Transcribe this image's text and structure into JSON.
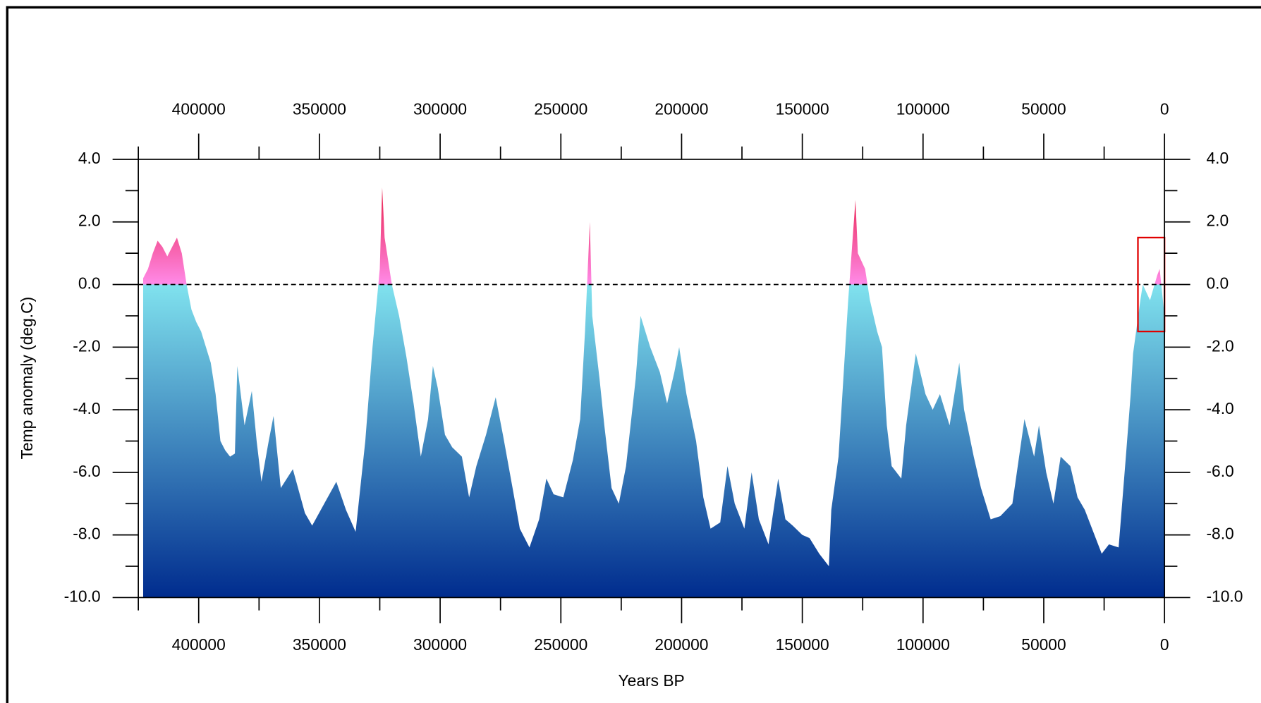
{
  "chart_data": {
    "type": "area",
    "xlabel": "Years BP",
    "ylabel": "Temp anomaly (deg.C)",
    "xlim": [
      425000,
      0
    ],
    "ylim": [
      -10,
      4
    ],
    "xticks": [
      400000,
      350000,
      300000,
      250000,
      200000,
      150000,
      100000,
      50000,
      0
    ],
    "xminor": [
      425000,
      375000,
      325000,
      275000,
      225000,
      175000,
      125000,
      75000,
      25000
    ],
    "yticks": [
      {
        "value": -10,
        "label": "-10.0"
      },
      {
        "value": -8,
        "label": "-8.0"
      },
      {
        "value": -6,
        "label": "-6.0"
      },
      {
        "value": -4,
        "label": "-4.0"
      },
      {
        "value": -2,
        "label": "-2.0"
      },
      {
        "value": 0,
        "label": "0.0"
      },
      {
        "value": 2,
        "label": "2.0"
      },
      {
        "value": 4,
        "label": "4.0"
      }
    ],
    "yminor": [
      -9,
      -7,
      -5,
      -3,
      -1,
      1,
      3
    ],
    "reference_line": 0,
    "colors": [
      "#e3001b",
      "#ff8ae8",
      "#80e2ee",
      "#002c8e"
    ],
    "highlight": {
      "xlim": [
        11000,
        0
      ],
      "ylim": [
        1.5,
        -1.5
      ],
      "color": "#e00000"
    },
    "x": [
      423000,
      421000,
      419000,
      417000,
      415000,
      413000,
      411000,
      409000,
      407000,
      405000,
      403000,
      401000,
      399000,
      397000,
      395000,
      393000,
      391000,
      389000,
      387000,
      385000,
      384000,
      381000,
      378000,
      376000,
      374000,
      371000,
      369000,
      366000,
      361000,
      356000,
      353000,
      348000,
      343000,
      339000,
      335000,
      331000,
      328000,
      325000,
      324000,
      323000,
      320000,
      317000,
      314000,
      311000,
      308000,
      305000,
      303000,
      301000,
      298000,
      295000,
      291000,
      288000,
      285000,
      281000,
      277000,
      274000,
      270000,
      267000,
      263000,
      259000,
      256000,
      253000,
      249000,
      245000,
      242000,
      240000,
      238000,
      237000,
      234000,
      232000,
      229000,
      226000,
      223000,
      219000,
      217000,
      215000,
      213000,
      209000,
      206000,
      203000,
      201000,
      198000,
      194000,
      191000,
      188000,
      184000,
      181000,
      178000,
      174000,
      171000,
      168000,
      164000,
      160000,
      157000,
      154000,
      150000,
      147000,
      143000,
      139000,
      138000,
      135000,
      133000,
      131000,
      128000,
      127000,
      124000,
      122000,
      119000,
      117000,
      115000,
      113000,
      109000,
      107000,
      103000,
      99000,
      96000,
      93000,
      89000,
      85000,
      83000,
      79000,
      76000,
      72000,
      68000,
      63000,
      58000,
      54000,
      52000,
      49000,
      46000,
      43000,
      39000,
      36000,
      33000,
      29000,
      26000,
      23000,
      19000,
      16000,
      14000,
      13000,
      10000,
      9000,
      6000,
      3000,
      2000,
      0
    ],
    "values": [
      0.2,
      0.5,
      1.0,
      1.4,
      1.2,
      0.9,
      1.2,
      1.5,
      1.0,
      0.0,
      -0.8,
      -1.2,
      -1.5,
      -2.0,
      -2.5,
      -3.5,
      -5.0,
      -5.3,
      -5.5,
      -5.4,
      -2.6,
      -4.5,
      -3.4,
      -5.0,
      -6.3,
      -5.0,
      -4.2,
      -6.5,
      -5.9,
      -7.3,
      -7.7,
      -7.0,
      -6.3,
      -7.2,
      -7.9,
      -5.0,
      -2.0,
      0.5,
      3.1,
      1.5,
      0.0,
      -1.0,
      -2.3,
      -3.8,
      -5.5,
      -4.3,
      -2.6,
      -3.3,
      -4.8,
      -5.2,
      -5.5,
      -6.8,
      -5.8,
      -4.8,
      -3.6,
      -4.8,
      -6.5,
      -7.8,
      -8.4,
      -7.5,
      -6.2,
      -6.7,
      -6.8,
      -5.6,
      -4.3,
      -1.5,
      2.0,
      -1.0,
      -3.0,
      -4.5,
      -6.5,
      -7.0,
      -5.8,
      -3.0,
      -1.0,
      -1.5,
      -2.0,
      -2.8,
      -3.8,
      -2.8,
      -2.0,
      -3.5,
      -5.0,
      -6.8,
      -7.8,
      -7.6,
      -5.8,
      -7.0,
      -7.8,
      -6.0,
      -7.5,
      -8.3,
      -6.2,
      -7.5,
      -7.7,
      -8.0,
      -8.1,
      -8.6,
      -9.0,
      -7.2,
      -5.5,
      -3.0,
      -0.5,
      2.7,
      1.0,
      0.5,
      -0.5,
      -1.5,
      -2.0,
      -4.5,
      -5.8,
      -6.2,
      -4.5,
      -2.2,
      -3.5,
      -4.0,
      -3.5,
      -4.5,
      -2.5,
      -4.0,
      -5.5,
      -6.5,
      -7.5,
      -7.4,
      -7.0,
      -4.3,
      -5.5,
      -4.5,
      -6.0,
      -7.0,
      -5.5,
      -5.8,
      -6.8,
      -7.2,
      -8.0,
      -8.6,
      -8.3,
      -8.4,
      -5.5,
      -3.5,
      -2.2,
      -0.5,
      0.0,
      -0.5,
      0.3,
      0.5,
      -1.0
    ]
  }
}
